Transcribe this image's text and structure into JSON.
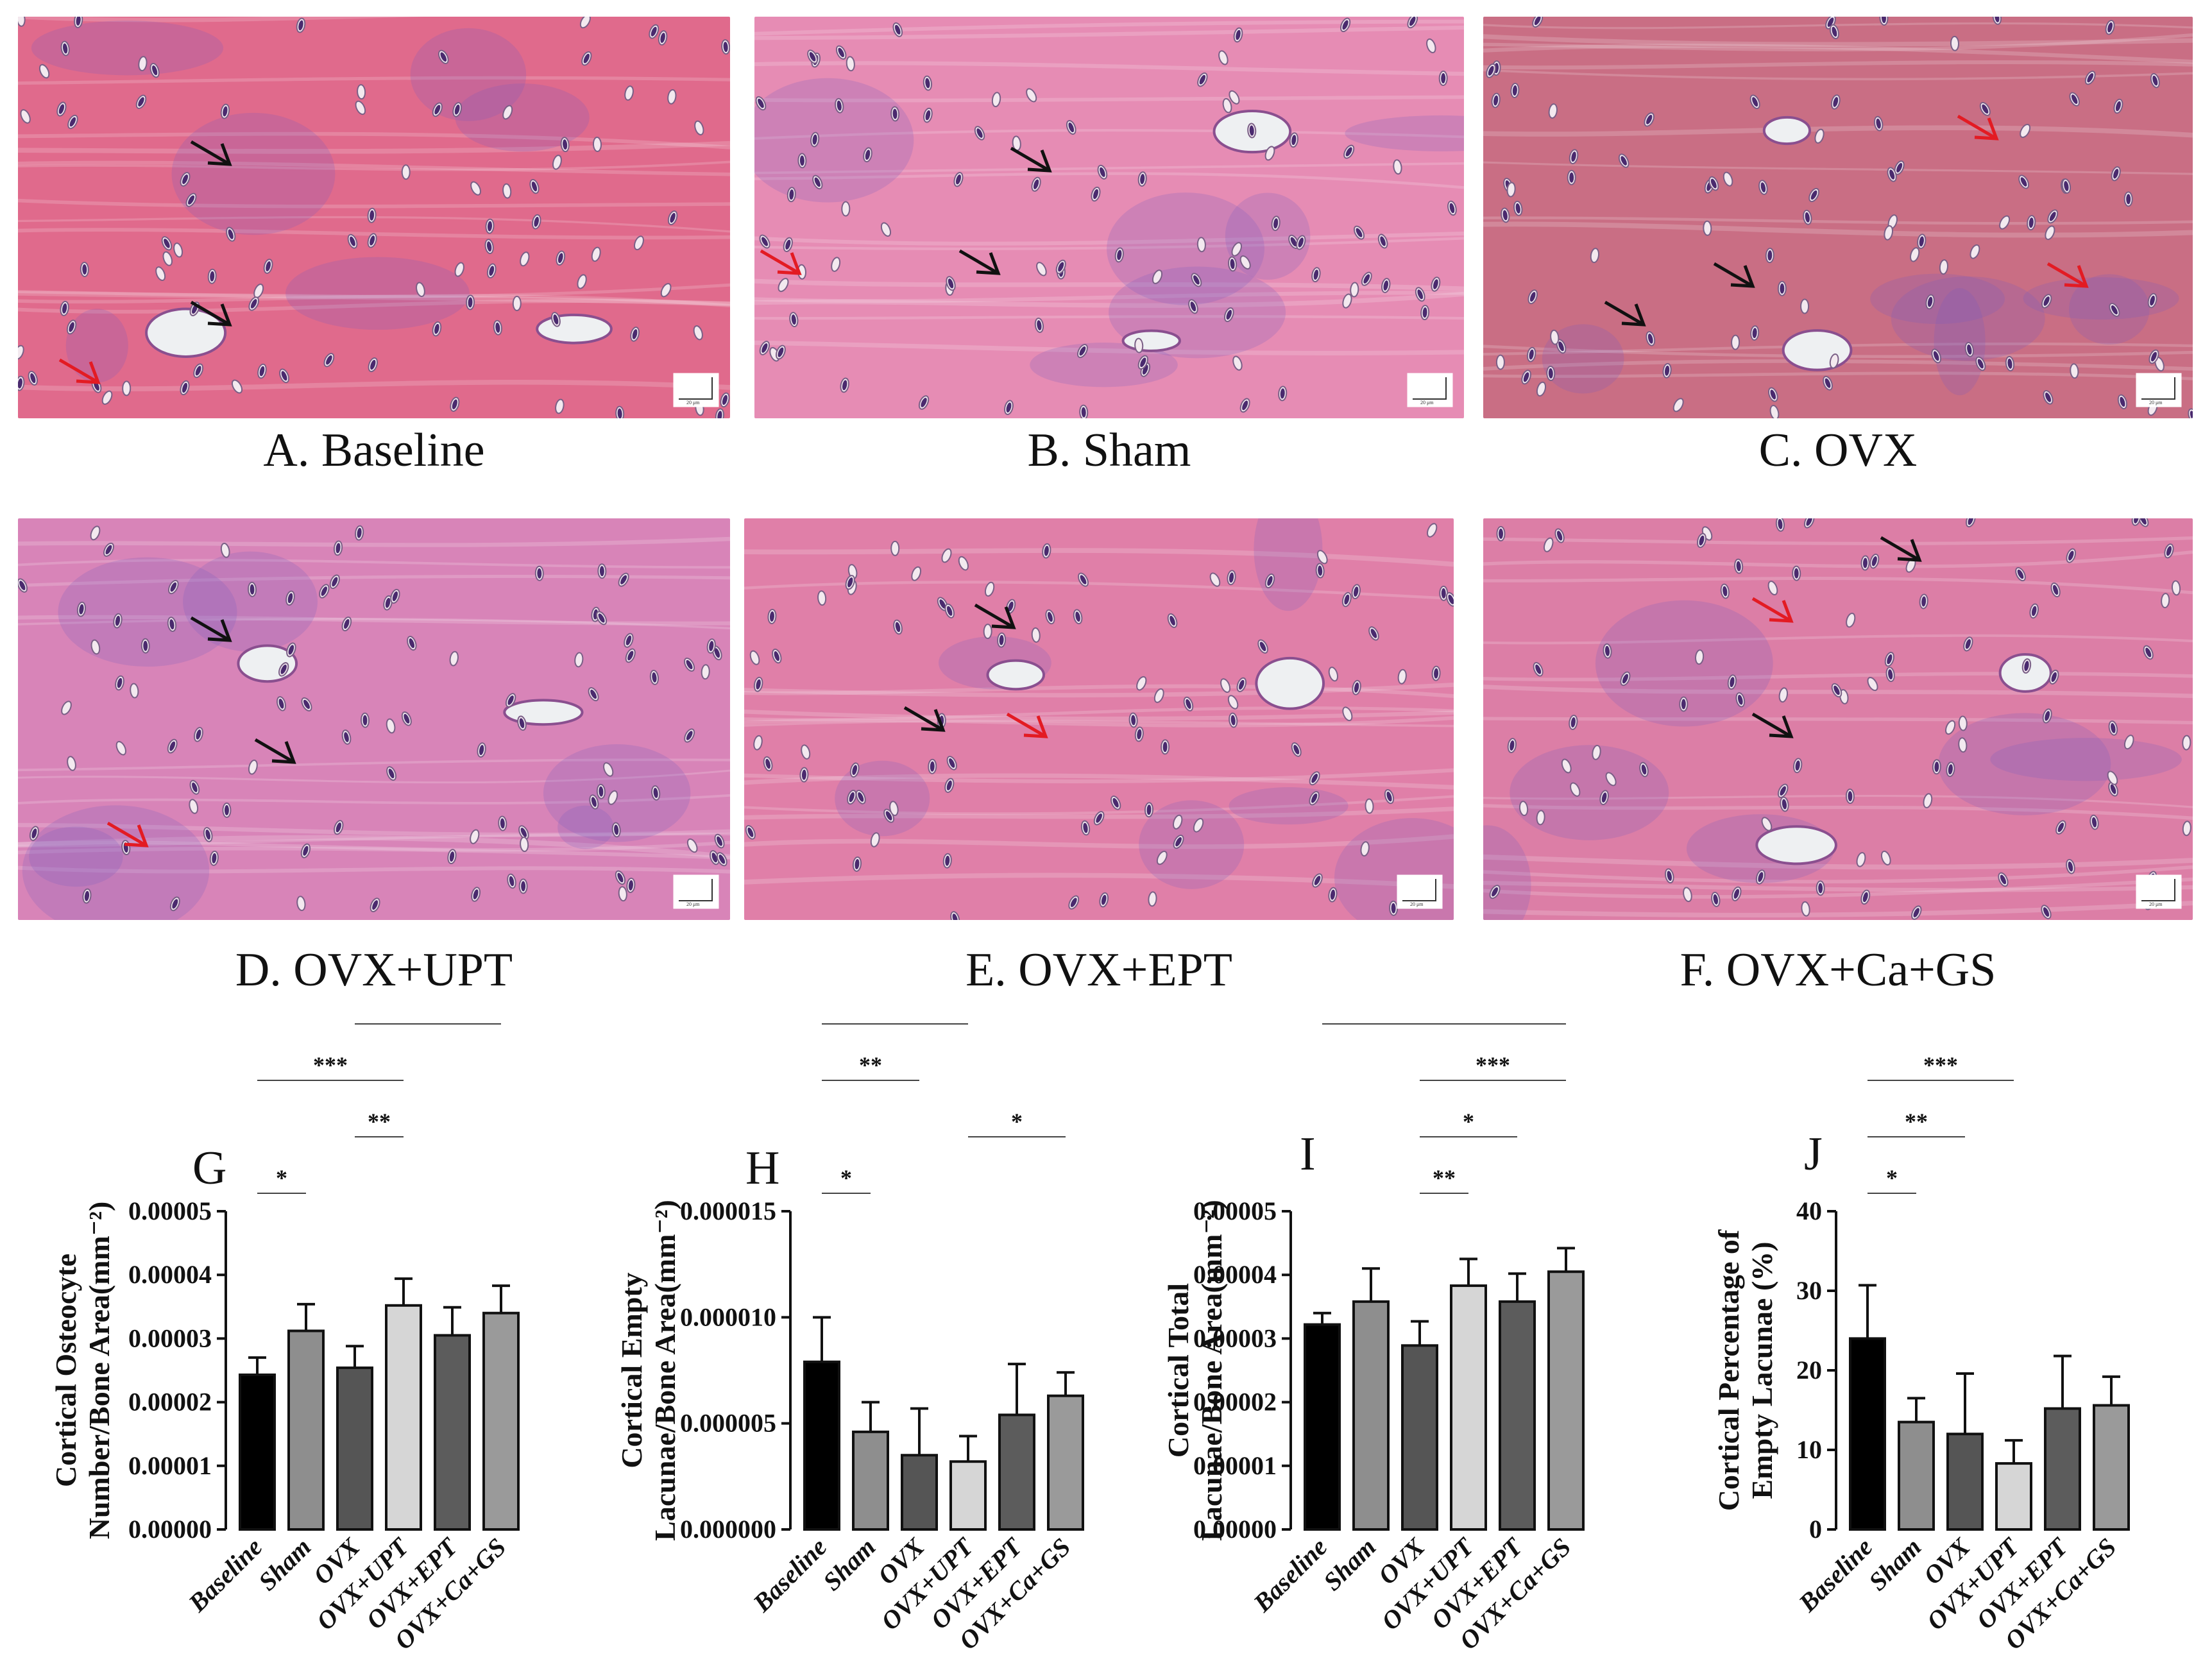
{
  "panels": [
    {
      "id": "A",
      "caption": "A. Baseline",
      "tissue": "#e06a8c",
      "scale_bar": "20 μm"
    },
    {
      "id": "B",
      "caption": "B. Sham",
      "tissue": "#e68cb4",
      "scale_bar": "20 μm"
    },
    {
      "id": "C",
      "caption": "C. OVX",
      "tissue": "#c96e84",
      "scale_bar": "20 μm"
    },
    {
      "id": "D",
      "caption": "D. OVX+UPT",
      "tissue": "#d884b8",
      "scale_bar": "20 μm"
    },
    {
      "id": "E",
      "caption": "E. OVX+EPT",
      "tissue": "#e07fa8",
      "scale_bar": "20 μm"
    },
    {
      "id": "F",
      "caption": "F. OVX+Ca+GS",
      "tissue": "#dc7ea6",
      "scale_bar": "20 μm"
    }
  ],
  "colors": {
    "bars": [
      "#000000",
      "#8e8e8e",
      "#555555",
      "#d6d6d6",
      "#5c5c5c",
      "#9a9a9a"
    ],
    "arrow_black": "#111111",
    "arrow_red": "#e31b23"
  },
  "chart_data": [
    {
      "letter": "G",
      "type": "bar",
      "categories": [
        "Baseline",
        "Sham",
        "OVX",
        "OVX+UPT",
        "OVX+EPT",
        "OVX+Ca+GS"
      ],
      "values": [
        2.43e-05,
        3.12e-05,
        2.54e-05,
        3.52e-05,
        3.05e-05,
        3.4e-05
      ],
      "errors": [
        2.7e-06,
        4.2e-06,
        3.4e-06,
        4.2e-06,
        4.4e-06,
        4.3e-06
      ],
      "ylim": [
        0,
        5e-05
      ],
      "yticks": [
        "0.00000",
        "0.00001",
        "0.00002",
        "0.00003",
        "0.00004",
        "0.00005"
      ],
      "ylabel": [
        "Cortical Osteocyte",
        "Number/Bone Area(mm⁻²)"
      ],
      "significance": [
        {
          "from": 0,
          "to": 1,
          "label": "*"
        },
        {
          "from": 2,
          "to": 3,
          "label": "**"
        },
        {
          "from": 0,
          "to": 3,
          "label": "***"
        },
        {
          "from": 2,
          "to": 5,
          "label": "**"
        },
        {
          "from": 0,
          "to": 5,
          "label": "**"
        }
      ]
    },
    {
      "letter": "H",
      "type": "bar",
      "categories": [
        "Baseline",
        "Sham",
        "OVX",
        "OVX+UPT",
        "OVX+EPT",
        "OVX+Ca+GS"
      ],
      "values": [
        7.9e-06,
        4.6e-06,
        3.5e-06,
        3.2e-06,
        5.4e-06,
        6.3e-06
      ],
      "errors": [
        2.1e-06,
        1.4e-06,
        2.2e-06,
        1.2e-06,
        2.4e-06,
        1.1e-06
      ],
      "ylim": [
        0,
        1.5e-05
      ],
      "yticks": [
        "0.000000",
        "0.000005",
        "0.000010",
        "0.000015"
      ],
      "ylabel": [
        "Cortical Empty",
        "Lacunae/Bone Area(mm⁻²)"
      ],
      "significance": [
        {
          "from": 0,
          "to": 1,
          "label": "*"
        },
        {
          "from": 3,
          "to": 5,
          "label": "*"
        },
        {
          "from": 0,
          "to": 2,
          "label": "**"
        },
        {
          "from": 0,
          "to": 3,
          "label": "***"
        }
      ]
    },
    {
      "letter": "I",
      "type": "bar",
      "categories": [
        "Baseline",
        "Sham",
        "OVX",
        "OVX+UPT",
        "OVX+EPT",
        "OVX+Ca+GS"
      ],
      "values": [
        3.22e-05,
        3.58e-05,
        2.89e-05,
        3.83e-05,
        3.58e-05,
        4.05e-05
      ],
      "errors": [
        1.8e-06,
        5.2e-06,
        3.8e-06,
        4.2e-06,
        4.4e-06,
        3.7e-06
      ],
      "ylim": [
        0,
        5e-05
      ],
      "yticks": [
        "0.00000",
        "0.00001",
        "0.00002",
        "0.00003",
        "0.00004",
        "0.00005"
      ],
      "ylabel": [
        "Cortical Total",
        "Lacunae/Bone Area(mm⁻²)"
      ],
      "significance": [
        {
          "from": 2,
          "to": 3,
          "label": "**"
        },
        {
          "from": 2,
          "to": 4,
          "label": "*"
        },
        {
          "from": 2,
          "to": 5,
          "label": "***"
        },
        {
          "from": 0,
          "to": 5,
          "label": "*"
        }
      ]
    },
    {
      "letter": "J",
      "type": "bar",
      "categories": [
        "Baseline",
        "Sham",
        "OVX",
        "OVX+UPT",
        "OVX+EPT",
        "OVX+Ca+GS"
      ],
      "values": [
        24,
        13.5,
        12,
        8.3,
        15.2,
        15.6
      ],
      "errors": [
        6.7,
        3.0,
        7.6,
        2.9,
        6.6,
        3.6
      ],
      "ylim": [
        0,
        40
      ],
      "yticks": [
        "0",
        "10",
        "20",
        "30",
        "40"
      ],
      "ylabel": [
        "Cortical Percentage of",
        "Empty Lacunae (%)"
      ],
      "significance": [
        {
          "from": 0,
          "to": 1,
          "label": "*"
        },
        {
          "from": 0,
          "to": 2,
          "label": "**"
        },
        {
          "from": 0,
          "to": 3,
          "label": "***"
        }
      ]
    }
  ]
}
